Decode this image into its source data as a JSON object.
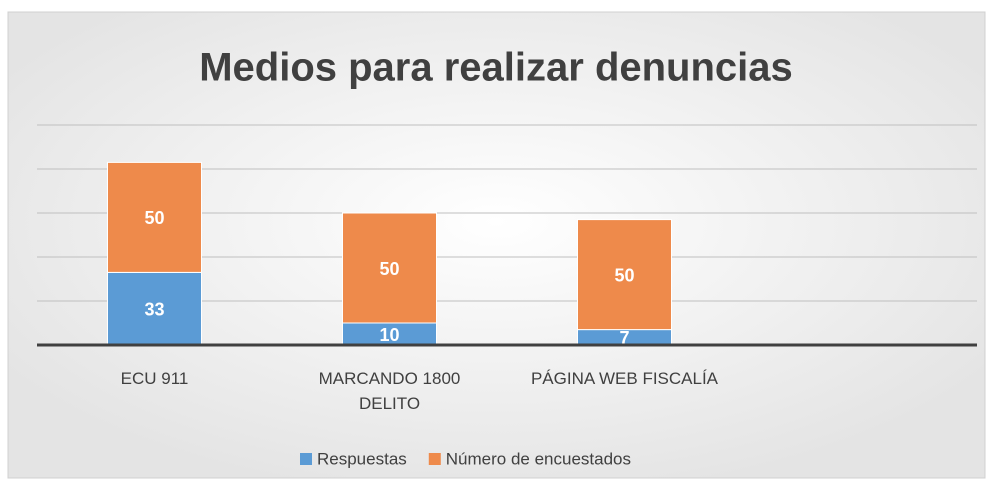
{
  "chart_data": {
    "type": "stacked_bar",
    "title": "Medios para realizar denuncias",
    "categories": [
      "ECU 911",
      "MARCANDO 1800 DELITO",
      "PÁGINA WEB FISCALÍA",
      null
    ],
    "series": [
      {
        "name": "Respuestas",
        "color": "#5b9bd5",
        "values": [
          33,
          10,
          7,
          null
        ]
      },
      {
        "name": "Número de encuestados",
        "color": "#ee8a4b",
        "values": [
          50,
          50,
          50,
          null
        ]
      }
    ],
    "ylim": [
      0,
      100
    ],
    "yticks": [
      0,
      20,
      40,
      60,
      80,
      100
    ],
    "grid": true,
    "legend": "bottom"
  }
}
